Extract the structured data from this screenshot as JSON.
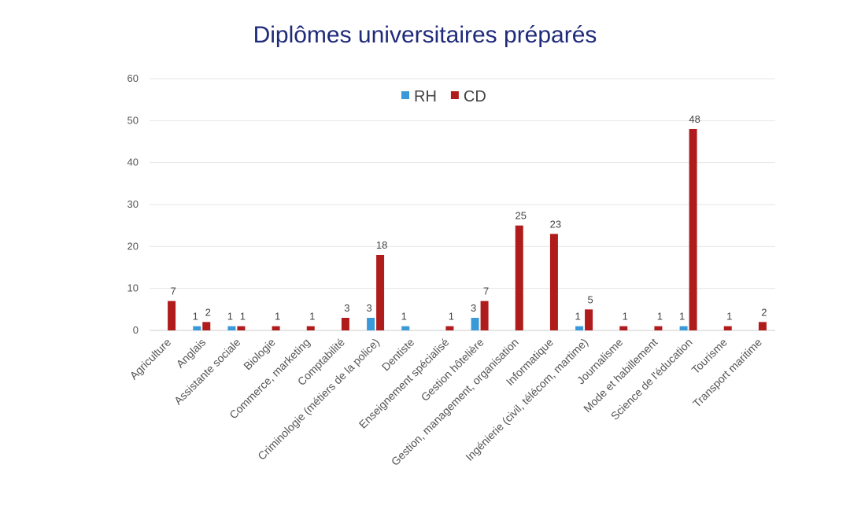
{
  "chart_data": {
    "type": "bar",
    "title": "Diplômes universitaires préparés",
    "xlabel": "",
    "ylabel": "",
    "ylim": [
      0,
      60
    ],
    "yticks": [
      0,
      10,
      20,
      30,
      40,
      50,
      60
    ],
    "grid": true,
    "legend_position": "top-center",
    "categories": [
      "Agriculture",
      "Anglais",
      "Assistante sociale",
      "Biologie",
      "Commerce, marketing",
      "Comptabilité",
      "Criminologie (métiers de la police)",
      "Dentiste",
      "Enseignement spécialisé",
      "Gestion hôtelière",
      "Gestion, management, organisation",
      "Informatique",
      "Ingénierie (civil, télécom, martime)",
      "Journalisme",
      "Mode et habillement",
      "Science de l'éducation",
      "Tourisme",
      "Transport maritime"
    ],
    "series": [
      {
        "name": "RH",
        "color": "#3a9ad9",
        "values": [
          null,
          1,
          1,
          null,
          null,
          null,
          3,
          1,
          null,
          3,
          null,
          null,
          1,
          null,
          null,
          1,
          null,
          null
        ]
      },
      {
        "name": "CD",
        "color": "#b01c1c",
        "values": [
          7,
          2,
          1,
          1,
          1,
          3,
          18,
          null,
          1,
          7,
          25,
          23,
          5,
          1,
          1,
          48,
          1,
          2
        ]
      }
    ]
  }
}
